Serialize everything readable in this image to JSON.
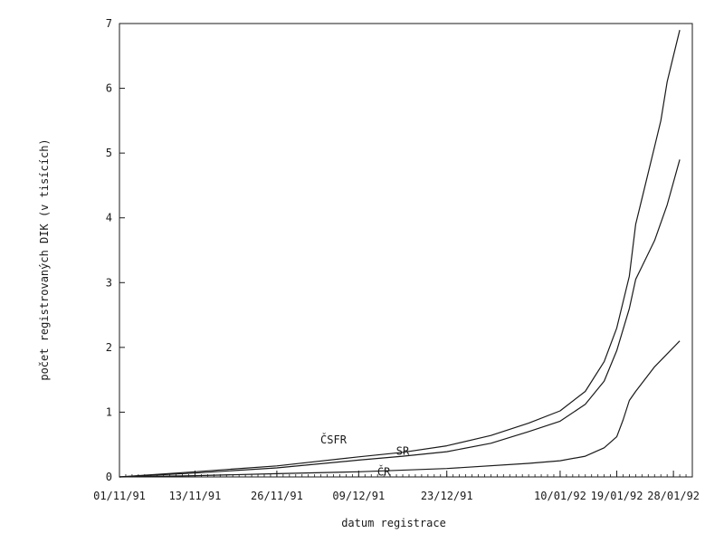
{
  "chart_data": {
    "type": "line",
    "xlabel": "datum registrace",
    "ylabel": "počet registrovaných DIK (v tisících)",
    "ylim": [
      0,
      7
    ],
    "yticks": [
      0,
      1,
      2,
      3,
      4,
      5,
      6,
      7
    ],
    "xlim": [
      "1991-11-01",
      "1992-01-31"
    ],
    "xticks": [
      "1991-11-01",
      "1991-11-13",
      "1991-11-26",
      "1991-12-09",
      "1991-12-23",
      "1992-01-10",
      "1992-01-19",
      "1992-01-28"
    ],
    "xtick_labels": [
      "01/11/91",
      "13/11/91",
      "26/11/91",
      "09/12/91",
      "23/12/91",
      "10/01/92",
      "19/01/92",
      "28/01/92"
    ],
    "grid": false,
    "series": [
      {
        "name": "ČSFR",
        "label_date": "1991-12-05",
        "label_value": 0.52,
        "points": [
          [
            "1991-11-01",
            0
          ],
          [
            "1991-11-13",
            0.08
          ],
          [
            "1991-11-26",
            0.17
          ],
          [
            "1991-12-09",
            0.31
          ],
          [
            "1991-12-16",
            0.38
          ],
          [
            "1991-12-23",
            0.48
          ],
          [
            "1991-12-30",
            0.64
          ],
          [
            "1992-01-05",
            0.83
          ],
          [
            "1992-01-10",
            1.02
          ],
          [
            "1992-01-14",
            1.32
          ],
          [
            "1992-01-17",
            1.78
          ],
          [
            "1992-01-19",
            2.3
          ],
          [
            "1992-01-21",
            3.1
          ],
          [
            "1992-01-22",
            3.9
          ],
          [
            "1992-01-23",
            4.3
          ],
          [
            "1992-01-25",
            5.1
          ],
          [
            "1992-01-26",
            5.5
          ],
          [
            "1992-01-27",
            6.1
          ],
          [
            "1992-01-28",
            6.5
          ],
          [
            "1992-01-29",
            6.9
          ]
        ]
      },
      {
        "name": "SR",
        "label_date": "1991-12-16",
        "label_value": 0.34,
        "points": [
          [
            "1991-11-01",
            0
          ],
          [
            "1991-11-13",
            0.06
          ],
          [
            "1991-11-26",
            0.14
          ],
          [
            "1991-12-09",
            0.26
          ],
          [
            "1991-12-16",
            0.32
          ],
          [
            "1991-12-23",
            0.39
          ],
          [
            "1991-12-30",
            0.52
          ],
          [
            "1992-01-05",
            0.7
          ],
          [
            "1992-01-10",
            0.86
          ],
          [
            "1992-01-14",
            1.12
          ],
          [
            "1992-01-17",
            1.48
          ],
          [
            "1992-01-19",
            1.95
          ],
          [
            "1992-01-21",
            2.6
          ],
          [
            "1992-01-22",
            3.05
          ],
          [
            "1992-01-23",
            3.25
          ],
          [
            "1992-01-25",
            3.65
          ],
          [
            "1992-01-27",
            4.2
          ],
          [
            "1992-01-29",
            4.9
          ]
        ]
      },
      {
        "name": "ČR",
        "label_date": "1991-12-13",
        "label_value": 0.02,
        "points": [
          [
            "1991-11-01",
            0
          ],
          [
            "1991-11-13",
            0.02
          ],
          [
            "1991-11-26",
            0.05
          ],
          [
            "1991-12-09",
            0.08
          ],
          [
            "1991-12-23",
            0.13
          ],
          [
            "1992-01-05",
            0.21
          ],
          [
            "1992-01-10",
            0.25
          ],
          [
            "1992-01-14",
            0.32
          ],
          [
            "1992-01-17",
            0.45
          ],
          [
            "1992-01-19",
            0.62
          ],
          [
            "1992-01-20",
            0.88
          ],
          [
            "1992-01-21",
            1.18
          ],
          [
            "1992-01-22",
            1.32
          ],
          [
            "1992-01-25",
            1.7
          ],
          [
            "1992-01-29",
            2.1
          ]
        ]
      }
    ]
  }
}
